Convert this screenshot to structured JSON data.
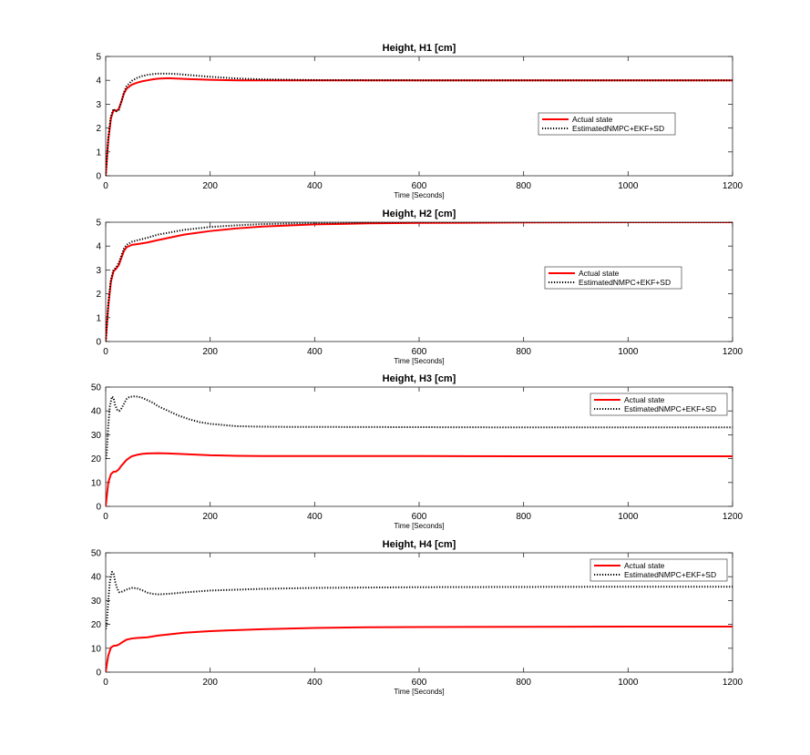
{
  "chart_data": [
    {
      "type": "line",
      "title": "Height, H1 [cm]",
      "xlabel": "Time [Seconds]",
      "ylabel": "",
      "xlim": [
        0,
        1200
      ],
      "ylim": [
        0,
        5
      ],
      "xticks": [
        0,
        200,
        400,
        600,
        800,
        1000,
        1200
      ],
      "yticks": [
        0,
        1,
        2,
        3,
        4,
        5
      ],
      "grid": false,
      "legend_position": "right-middle",
      "series": [
        {
          "name": "Actual state",
          "color": "#ff0000",
          "style": "solid",
          "x": [
            0,
            2,
            5,
            10,
            15,
            20,
            25,
            30,
            35,
            40,
            50,
            60,
            70,
            80,
            90,
            100,
            120,
            140,
            160,
            200,
            250,
            300,
            400,
            600,
            800,
            1000,
            1200
          ],
          "y": [
            0,
            0.6,
            1.5,
            2.4,
            2.75,
            2.72,
            2.8,
            3.1,
            3.45,
            3.65,
            3.82,
            3.9,
            3.96,
            4.0,
            4.04,
            4.07,
            4.09,
            4.07,
            4.05,
            4.02,
            4.0,
            4.0,
            4.0,
            4.0,
            4.0,
            4.0,
            4.0
          ]
        },
        {
          "name": "EstimatedNMPC+EKF+SD",
          "color": "#000000",
          "style": "dotted",
          "x": [
            0,
            2,
            5,
            10,
            15,
            20,
            25,
            30,
            35,
            40,
            50,
            60,
            70,
            80,
            90,
            100,
            120,
            140,
            160,
            200,
            250,
            300,
            400,
            600,
            800,
            1000,
            1200
          ],
          "y": [
            0,
            0.7,
            1.6,
            2.5,
            2.8,
            2.7,
            2.75,
            3.1,
            3.5,
            3.75,
            3.98,
            4.1,
            4.18,
            4.23,
            4.26,
            4.28,
            4.28,
            4.26,
            4.22,
            4.15,
            4.08,
            4.04,
            4.01,
            4.0,
            4.0,
            4.0,
            4.0
          ]
        }
      ]
    },
    {
      "type": "line",
      "title": "Height, H2 [cm]",
      "xlabel": "Time [Seconds]",
      "ylabel": "",
      "xlim": [
        0,
        1200
      ],
      "ylim": [
        0,
        5
      ],
      "xticks": [
        0,
        200,
        400,
        600,
        800,
        1000,
        1200
      ],
      "yticks": [
        0,
        1,
        2,
        3,
        4,
        5
      ],
      "grid": false,
      "legend_position": "right-middle",
      "series": [
        {
          "name": "Actual state",
          "color": "#ff0000",
          "style": "solid",
          "x": [
            0,
            2,
            5,
            10,
            15,
            20,
            25,
            30,
            35,
            40,
            50,
            60,
            80,
            100,
            150,
            200,
            250,
            300,
            400,
            500,
            600,
            800,
            1000,
            1200
          ],
          "y": [
            0,
            0.6,
            1.5,
            2.5,
            2.95,
            3.05,
            3.2,
            3.5,
            3.8,
            3.95,
            4.05,
            4.08,
            4.15,
            4.25,
            4.48,
            4.63,
            4.74,
            4.82,
            4.91,
            4.95,
            4.97,
            4.99,
            5.0,
            5.0
          ]
        },
        {
          "name": "EstimatedNMPC+EKF+SD",
          "color": "#000000",
          "style": "dotted",
          "x": [
            0,
            2,
            5,
            10,
            15,
            20,
            25,
            30,
            35,
            40,
            50,
            60,
            80,
            100,
            150,
            200,
            250,
            300,
            400,
            500,
            600,
            800,
            1000,
            1200
          ],
          "y": [
            0,
            0.65,
            1.6,
            2.6,
            3.0,
            3.1,
            3.3,
            3.6,
            3.9,
            4.05,
            4.18,
            4.24,
            4.35,
            4.48,
            4.68,
            4.8,
            4.87,
            4.92,
            4.97,
            4.99,
            5.0,
            5.0,
            5.0,
            5.0
          ]
        }
      ]
    },
    {
      "type": "line",
      "title": "Height, H3 [cm]",
      "xlabel": "Time [Seconds]",
      "ylabel": "",
      "xlim": [
        0,
        1200
      ],
      "ylim": [
        0,
        50
      ],
      "xticks": [
        0,
        200,
        400,
        600,
        800,
        1000,
        1200
      ],
      "yticks": [
        0,
        10,
        20,
        30,
        40,
        50
      ],
      "grid": false,
      "legend_position": "top-right",
      "series": [
        {
          "name": "Actual state",
          "color": "#ff0000",
          "style": "solid",
          "x": [
            0,
            2,
            5,
            10,
            15,
            20,
            25,
            30,
            40,
            50,
            60,
            70,
            80,
            100,
            120,
            150,
            200,
            250,
            300,
            400,
            600,
            800,
            1000,
            1200
          ],
          "y": [
            0,
            4,
            10,
            13.5,
            14.5,
            14.6,
            15.5,
            17,
            19.5,
            21,
            21.6,
            22,
            22.2,
            22.3,
            22.2,
            21.9,
            21.4,
            21.2,
            21.1,
            21.1,
            21.1,
            21.0,
            21.0,
            21.0
          ]
        },
        {
          "name": "EstimatedNMPC+EKF+SD",
          "color": "#000000",
          "style": "dotted",
          "x": [
            0,
            2,
            5,
            8,
            12,
            15,
            18,
            22,
            26,
            30,
            35,
            40,
            45,
            50,
            55,
            60,
            65,
            70,
            80,
            90,
            100,
            120,
            140,
            160,
            180,
            200,
            250,
            300,
            350,
            400,
            600,
            800,
            1000,
            1200
          ],
          "y": [
            20,
            22,
            34,
            42,
            46,
            45.5,
            42.5,
            40.5,
            40,
            41,
            43,
            45,
            45.8,
            46,
            46.1,
            46,
            45.8,
            45.5,
            44.5,
            43.5,
            42,
            40,
            38,
            36.5,
            35.3,
            34.6,
            33.6,
            33.4,
            33.3,
            33.3,
            33.2,
            33.1,
            33.1,
            33.1
          ]
        }
      ]
    },
    {
      "type": "line",
      "title": "Height, H4 [cm]",
      "xlabel": "Time [Seconds]",
      "ylabel": "",
      "xlim": [
        0,
        1200
      ],
      "ylim": [
        0,
        50
      ],
      "xticks": [
        0,
        200,
        400,
        600,
        800,
        1000,
        1200
      ],
      "yticks": [
        0,
        10,
        20,
        30,
        40,
        50
      ],
      "grid": false,
      "legend_position": "top-right",
      "series": [
        {
          "name": "Actual state",
          "color": "#ff0000",
          "style": "solid",
          "x": [
            0,
            2,
            5,
            10,
            15,
            20,
            25,
            30,
            40,
            50,
            60,
            80,
            100,
            150,
            200,
            250,
            300,
            400,
            500,
            600,
            800,
            1000,
            1200
          ],
          "y": [
            0,
            3,
            7,
            10.3,
            11,
            11.1,
            11.5,
            12.3,
            13.6,
            14.1,
            14.3,
            14.6,
            15.3,
            16.5,
            17.2,
            17.6,
            18.0,
            18.5,
            18.8,
            18.9,
            19.0,
            19.1,
            19.1
          ]
        },
        {
          "name": "EstimatedNMPC+EKF+SD",
          "color": "#000000",
          "style": "dotted",
          "x": [
            0,
            2,
            5,
            8,
            12,
            15,
            18,
            22,
            26,
            30,
            40,
            50,
            60,
            70,
            80,
            90,
            100,
            120,
            150,
            200,
            300,
            400,
            600,
            800,
            1000,
            1200
          ],
          "y": [
            18,
            20,
            30,
            38,
            42,
            41.5,
            38,
            35,
            33.5,
            33.6,
            34.6,
            35.3,
            35.1,
            34.3,
            33.3,
            32.8,
            32.6,
            32.8,
            33.4,
            34.2,
            34.9,
            35.3,
            35.6,
            35.7,
            35.8,
            35.8
          ]
        }
      ]
    }
  ]
}
